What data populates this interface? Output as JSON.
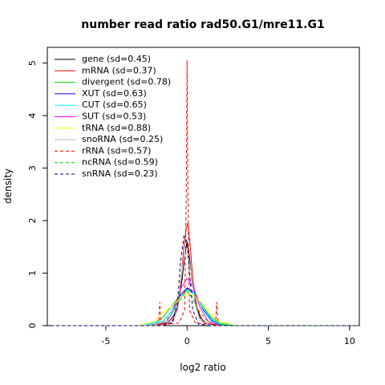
{
  "chart_data": {
    "type": "line",
    "title": "number read ratio rad50.G1/mre11.G1",
    "xlabel": "log2 ratio",
    "ylabel": "density",
    "xlim": [
      -8.6,
      10.6
    ],
    "ylim": [
      0,
      5.3
    ],
    "x_ticks": [
      -5,
      0,
      5,
      10
    ],
    "y_ticks": [
      0,
      1,
      2,
      3,
      4,
      5
    ],
    "grid": false,
    "legend_position": "top-left",
    "series": [
      {
        "name": "gene (sd=0.45)",
        "color": "#000000",
        "dash": "solid",
        "points": [
          [
            -8.4,
            0
          ],
          [
            -2,
            0
          ],
          [
            -1.2,
            0.05
          ],
          [
            -0.8,
            0.2
          ],
          [
            -0.5,
            0.5
          ],
          [
            -0.3,
            0.9
          ],
          [
            -0.15,
            1.3
          ],
          [
            0,
            1.6
          ],
          [
            0.15,
            1.3
          ],
          [
            0.3,
            0.85
          ],
          [
            0.5,
            0.45
          ],
          [
            0.8,
            0.15
          ],
          [
            1.2,
            0.04
          ],
          [
            2,
            0
          ],
          [
            10.5,
            0
          ]
        ]
      },
      {
        "name": "mRNA (sd=0.37)",
        "color": "#ff0000",
        "dash": "solid",
        "points": [
          [
            -8.4,
            0
          ],
          [
            -2,
            0
          ],
          [
            -1,
            0.05
          ],
          [
            -0.6,
            0.3
          ],
          [
            -0.35,
            0.9
          ],
          [
            -0.2,
            1.5
          ],
          [
            -0.05,
            1.85
          ],
          [
            0.05,
            1.95
          ],
          [
            0.2,
            1.5
          ],
          [
            0.35,
            0.9
          ],
          [
            0.6,
            0.35
          ],
          [
            1,
            0.06
          ],
          [
            2,
            0
          ],
          [
            10.5,
            0
          ]
        ]
      },
      {
        "name": "divergent (sd=0.78)",
        "color": "#00cd00",
        "dash": "solid",
        "points": [
          [
            -8.4,
            0
          ],
          [
            -3,
            0
          ],
          [
            -2,
            0.05
          ],
          [
            -1.5,
            0.15
          ],
          [
            -1,
            0.35
          ],
          [
            -0.5,
            0.55
          ],
          [
            0,
            0.7
          ],
          [
            0.5,
            0.58
          ],
          [
            1,
            0.35
          ],
          [
            1.5,
            0.15
          ],
          [
            2,
            0.05
          ],
          [
            3,
            0
          ],
          [
            10.5,
            0
          ]
        ]
      },
      {
        "name": "XUT (sd=0.63)",
        "color": "#0000ff",
        "dash": "solid",
        "points": [
          [
            -8.4,
            0
          ],
          [
            -3,
            0
          ],
          [
            -1.5,
            0.08
          ],
          [
            -1,
            0.25
          ],
          [
            -0.5,
            0.55
          ],
          [
            0,
            0.72
          ],
          [
            0.5,
            0.62
          ],
          [
            1,
            0.3
          ],
          [
            1.5,
            0.1
          ],
          [
            2,
            0.02
          ],
          [
            3,
            0
          ],
          [
            10.5,
            0
          ]
        ]
      },
      {
        "name": "CUT (sd=0.65)",
        "color": "#00ffff",
        "dash": "solid",
        "points": [
          [
            -8.4,
            0
          ],
          [
            -3,
            0
          ],
          [
            -1.5,
            0.08
          ],
          [
            -1,
            0.25
          ],
          [
            -0.5,
            0.5
          ],
          [
            0,
            0.68
          ],
          [
            0.5,
            0.6
          ],
          [
            1,
            0.32
          ],
          [
            1.5,
            0.12
          ],
          [
            2,
            0.03
          ],
          [
            3,
            0
          ],
          [
            10.5,
            0
          ]
        ]
      },
      {
        "name": "SUT (sd=0.53)",
        "color": "#ff00ff",
        "dash": "solid",
        "points": [
          [
            -8.4,
            0
          ],
          [
            -2.5,
            0
          ],
          [
            -1.3,
            0.06
          ],
          [
            -0.8,
            0.3
          ],
          [
            -0.4,
            0.7
          ],
          [
            0,
            0.9
          ],
          [
            0.4,
            0.72
          ],
          [
            0.8,
            0.35
          ],
          [
            1.3,
            0.08
          ],
          [
            2,
            0
          ],
          [
            10.5,
            0
          ]
        ]
      },
      {
        "name": "tRNA (sd=0.88)",
        "color": "#ffff00",
        "dash": "solid",
        "points": [
          [
            -8.4,
            0
          ],
          [
            -3,
            0
          ],
          [
            -2,
            0.08
          ],
          [
            -1.5,
            0.25
          ],
          [
            -1,
            0.35
          ],
          [
            -0.5,
            0.5
          ],
          [
            0,
            0.62
          ],
          [
            0.5,
            0.55
          ],
          [
            1,
            0.4
          ],
          [
            1.5,
            0.2
          ],
          [
            2,
            0.08
          ],
          [
            3,
            0
          ],
          [
            10.5,
            0
          ]
        ]
      },
      {
        "name": "snoRNA (sd=0.25)",
        "color": "#bebebe",
        "dash": "solid",
        "points": [
          [
            -8.4,
            0
          ],
          [
            -1.5,
            0
          ],
          [
            -0.8,
            0.1
          ],
          [
            -0.5,
            0.6
          ],
          [
            -0.3,
            1.1
          ],
          [
            -0.1,
            1.4
          ],
          [
            0.1,
            1.3
          ],
          [
            0.3,
            0.9
          ],
          [
            0.5,
            0.4
          ],
          [
            0.8,
            0.1
          ],
          [
            1.5,
            0
          ],
          [
            10.5,
            0
          ]
        ]
      },
      {
        "name": "rRNA (sd=0.57)",
        "color": "#ff0000",
        "dash": "dashed",
        "points": [
          [
            -8.4,
            0
          ],
          [
            -2,
            0
          ],
          [
            -1.75,
            0.02
          ],
          [
            -1.68,
            0.45
          ],
          [
            -1.6,
            0.02
          ],
          [
            -0.5,
            0.05
          ],
          [
            -0.15,
            0.3
          ],
          [
            -0.05,
            2.5
          ],
          [
            0,
            5.05
          ],
          [
            0.05,
            2.5
          ],
          [
            0.15,
            0.3
          ],
          [
            0.5,
            0.05
          ],
          [
            1.75,
            0.02
          ],
          [
            1.83,
            0.45
          ],
          [
            1.9,
            0.02
          ],
          [
            2.5,
            0
          ],
          [
            10.5,
            0
          ]
        ]
      },
      {
        "name": "ncRNA (sd=0.59)",
        "color": "#00cd00",
        "dash": "dashed",
        "points": [
          [
            -8.4,
            0
          ],
          [
            -2.5,
            0
          ],
          [
            -1.5,
            0.05
          ],
          [
            -1,
            0.2
          ],
          [
            -0.5,
            0.45
          ],
          [
            -0.2,
            0.6
          ],
          [
            0,
            0.65
          ],
          [
            0.3,
            0.55
          ],
          [
            0.7,
            0.3
          ],
          [
            1.2,
            0.1
          ],
          [
            2,
            0.01
          ],
          [
            3,
            0
          ],
          [
            10.5,
            0
          ]
        ]
      },
      {
        "name": "snRNA (sd=0.23)",
        "color": "#00008b",
        "dash": "dashed",
        "points": [
          [
            -8.4,
            0
          ],
          [
            -1.5,
            0
          ],
          [
            -0.9,
            0.05
          ],
          [
            -0.6,
            0.4
          ],
          [
            -0.4,
            1.2
          ],
          [
            -0.2,
            1.7
          ],
          [
            0,
            1.6
          ],
          [
            0.15,
            1.0
          ],
          [
            0.35,
            0.3
          ],
          [
            0.7,
            0.03
          ],
          [
            1.5,
            0
          ],
          [
            10.5,
            0
          ]
        ]
      }
    ]
  }
}
